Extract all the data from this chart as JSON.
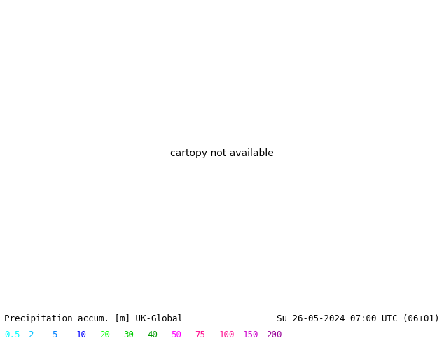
{
  "title_left": "Precipitation accum. [m] UK-Global",
  "title_right": "Su 26-05-2024 07:00 UTC (06+01)",
  "legend_values": [
    "0.5",
    "2",
    "5",
    "10",
    "20",
    "30",
    "40",
    "50",
    "75",
    "100",
    "150",
    "200"
  ],
  "legend_colors": [
    "#00ffff",
    "#00bfff",
    "#0080ff",
    "#0000ff",
    "#00ff00",
    "#00cc00",
    "#009900",
    "#ff00ff",
    "#ff1493",
    "#ff1493",
    "#cc00cc",
    "#990099"
  ],
  "background_color": "#ffffff",
  "land_color": "#c8c8a0",
  "sea_color": "#c8dce8",
  "isobar_red": "#ff0000",
  "isobar_blue": "#0000ff",
  "font_size_title": 9,
  "font_size_legend": 9,
  "font_family": "monospace",
  "fig_width": 6.34,
  "fig_height": 4.9,
  "dpi": 100,
  "map_extent": [
    -30,
    45,
    30,
    75
  ],
  "precip_green_alpha": 0.55,
  "precip_cyan_alpha": 0.65
}
